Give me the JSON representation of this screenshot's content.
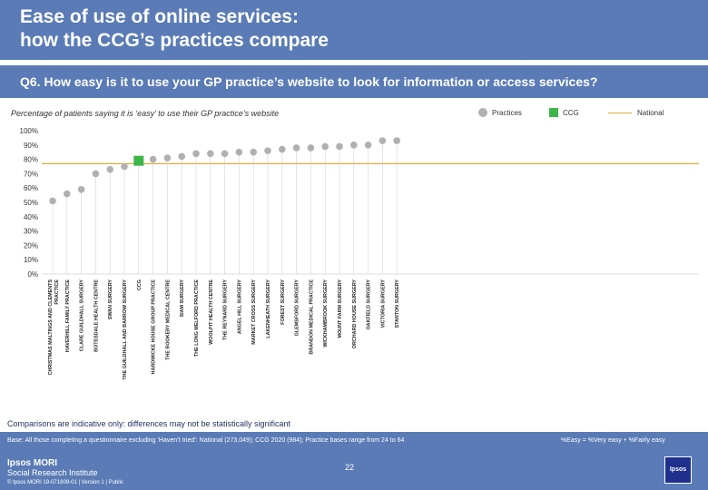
{
  "header": {
    "title_line1": "Ease of use of online services:",
    "title_line2": "how the CCG’s practices compare"
  },
  "question": "Q6. How easy is it to use your GP practice’s website to look for information or access services?",
  "subtitle": "Percentage of patients saying it is ‘easy’ to use their GP practice’s website",
  "legend": {
    "practices": "Practices",
    "ccg": "CCG",
    "national": "National"
  },
  "colors": {
    "practice": "#b0b0b0",
    "ccg": "#3db54a",
    "national": "#e2a93b",
    "brand": "#5a7bb5"
  },
  "chart_data": {
    "type": "scatter",
    "title": "Q6. How easy is it to use your GP practice’s website to look for information or access services?",
    "ylabel": "",
    "ylim": [
      0,
      100
    ],
    "yticks": [
      "0%",
      "10%",
      "20%",
      "30%",
      "40%",
      "50%",
      "60%",
      "70%",
      "80%",
      "90%",
      "100%"
    ],
    "national": 77,
    "categories": [
      "CHRISTMAS MALTINGS AND CLEMENTS PRACTICE",
      "HAVERHILL FAMILY PRACTICE",
      "CLARE GUILDHALL SURGERY",
      "BOTESDALE HEALTH CENTRE",
      "SWAN SURGERY",
      "THE GUILDHALL AND BARROW SURGERY",
      "CCG",
      "HARDWICKE HOUSE GROUP PRACTICE",
      "THE ROOKERY MEDICAL CENTRE",
      "SIAM SURGERY",
      "THE LONG MELFORD PRACTICE",
      "WOOLPIT HEALTH CENTRE",
      "THE REYNARD SURGERY",
      "ANGEL HILL SURGERY",
      "MARKET CROSS SURGERY",
      "LAKENHEATH SURGERY",
      "FOREST SURGERY",
      "GLEMSFORD SURGERY",
      "BRANDON MEDICAL PRACTICE",
      "WICKHAMBROOK SURGERY",
      "MOUNT FARM SURGERY",
      "ORCHARD HOUSE SURGERY",
      "OAKFIELD SURGERY",
      "VICTORIA SURGERY",
      "STANTON SURGERY"
    ],
    "values": [
      51,
      56,
      59,
      70,
      73,
      75,
      79,
      80,
      81,
      82,
      84,
      84,
      84,
      85,
      85,
      86,
      87,
      88,
      88,
      89,
      89,
      90,
      90,
      93,
      93
    ],
    "ccg_index": 6
  },
  "comparisons_note": "Comparisons are indicative only: differences may not be statistically significant",
  "footer": {
    "base": "Base: All those completing a questionnaire excluding ‘Haven’t tried’: National (273,049); CCG 2020 (984); Practice bases range from 24 to 64",
    "easy_def": "%Easy = %Very easy + %Fairly easy",
    "page": "22",
    "brand_line1": "Ipsos MORI",
    "brand_line2": "Social Research Institute",
    "ref": "© Ipsos MORI    19-071809-01 | Version 1 | Public",
    "logo": "Ipsos"
  }
}
